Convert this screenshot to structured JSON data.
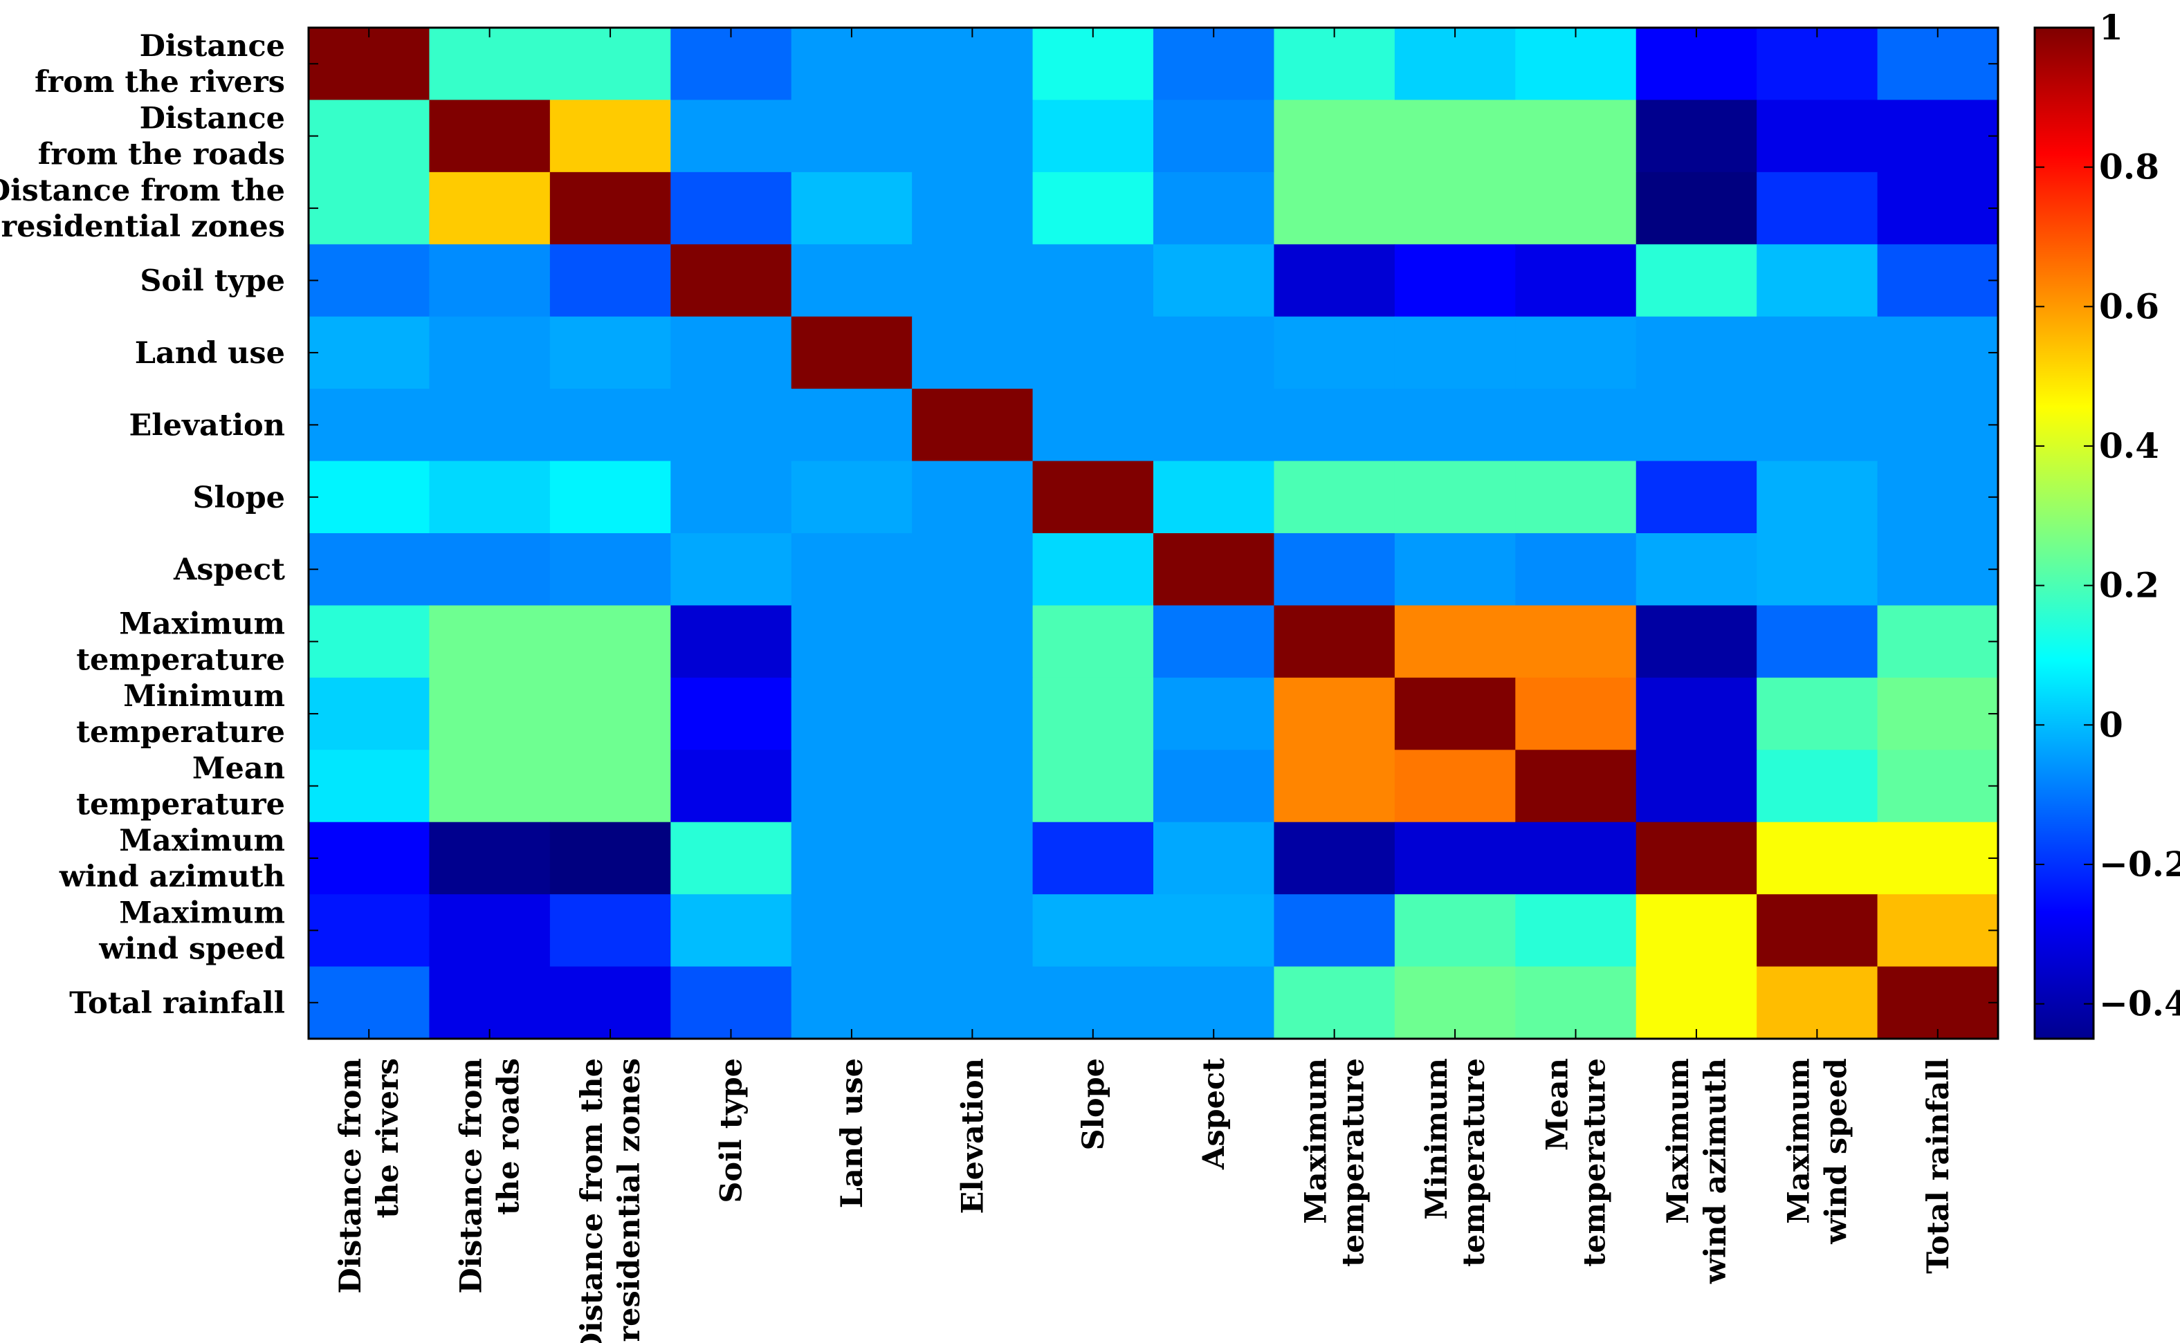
{
  "chart_data": {
    "type": "heatmap",
    "title": "",
    "row_labels": [
      [
        "Distance",
        "from the rivers"
      ],
      [
        "Distance",
        "from the roads"
      ],
      [
        "Distance from the",
        "residential zones"
      ],
      [
        "Soil type"
      ],
      [
        "Land use"
      ],
      [
        "Elevation"
      ],
      [
        "Slope"
      ],
      [
        "Aspect"
      ],
      [
        "Maximum",
        "temperature"
      ],
      [
        "Minimum",
        "temperature"
      ],
      [
        "Mean",
        "temperature"
      ],
      [
        "Maximum",
        "wind azimuth"
      ],
      [
        "Maximum",
        "wind speed"
      ],
      [
        "Total rainfall"
      ]
    ],
    "col_labels": [
      [
        "Distance from",
        "the rivers"
      ],
      [
        "Distance from",
        "the roads"
      ],
      [
        "Distance from the",
        "residential zones"
      ],
      [
        "Soil type"
      ],
      [
        "Land use"
      ],
      [
        "Elevation"
      ],
      [
        "Slope"
      ],
      [
        "Aspect"
      ],
      [
        "Maximum",
        "temperature"
      ],
      [
        "Minimum",
        "temperature"
      ],
      [
        "Mean",
        "temperature"
      ],
      [
        "Maximum",
        "wind azimuth"
      ],
      [
        "Maximum",
        "wind speed"
      ],
      [
        "Total rainfall"
      ]
    ],
    "values": [
      [
        1.0,
        0.17,
        0.17,
        -0.12,
        -0.05,
        -0.05,
        0.12,
        -0.1,
        0.15,
        0.03,
        0.06,
        -0.27,
        -0.24,
        -0.12
      ],
      [
        0.17,
        1.0,
        0.53,
        -0.05,
        -0.05,
        -0.05,
        0.05,
        -0.08,
        0.25,
        0.25,
        0.25,
        -0.43,
        -0.3,
        -0.3
      ],
      [
        0.17,
        0.53,
        1.0,
        -0.15,
        0.0,
        -0.05,
        0.12,
        -0.06,
        0.25,
        0.25,
        0.25,
        -0.45,
        -0.2,
        -0.3
      ],
      [
        -0.1,
        -0.07,
        -0.15,
        1.0,
        -0.05,
        -0.05,
        -0.05,
        -0.02,
        -0.33,
        -0.27,
        -0.3,
        0.15,
        0.0,
        -0.15
      ],
      [
        -0.02,
        -0.05,
        -0.03,
        -0.05,
        1.0,
        -0.05,
        -0.05,
        -0.05,
        -0.04,
        -0.04,
        -0.04,
        -0.05,
        -0.05,
        -0.05
      ],
      [
        -0.05,
        -0.05,
        -0.05,
        -0.05,
        -0.05,
        1.0,
        -0.05,
        -0.05,
        -0.05,
        -0.05,
        -0.05,
        -0.05,
        -0.05,
        -0.05
      ],
      [
        0.08,
        0.04,
        0.08,
        -0.05,
        -0.03,
        -0.05,
        1.0,
        0.04,
        0.2,
        0.2,
        0.2,
        -0.2,
        -0.02,
        -0.05
      ],
      [
        -0.08,
        -0.08,
        -0.07,
        -0.03,
        -0.05,
        -0.05,
        0.04,
        1.0,
        -0.1,
        -0.05,
        -0.07,
        -0.03,
        -0.02,
        -0.05
      ],
      [
        0.15,
        0.25,
        0.25,
        -0.33,
        -0.05,
        -0.05,
        0.2,
        -0.1,
        1.0,
        0.63,
        0.63,
        -0.4,
        -0.12,
        0.2
      ],
      [
        0.03,
        0.25,
        0.25,
        -0.27,
        -0.05,
        -0.05,
        0.2,
        -0.05,
        0.63,
        1.0,
        0.65,
        -0.33,
        0.2,
        0.25
      ],
      [
        0.06,
        0.25,
        0.25,
        -0.3,
        -0.05,
        -0.05,
        0.2,
        -0.07,
        0.63,
        0.65,
        1.0,
        -0.33,
        0.15,
        0.23
      ],
      [
        -0.27,
        -0.43,
        -0.45,
        0.15,
        -0.05,
        -0.05,
        -0.2,
        -0.03,
        -0.4,
        -0.33,
        -0.33,
        1.0,
        0.45,
        0.45
      ],
      [
        -0.24,
        -0.3,
        -0.2,
        0.0,
        -0.05,
        -0.05,
        -0.02,
        -0.02,
        -0.12,
        0.2,
        0.15,
        0.45,
        1.0,
        0.55
      ],
      [
        -0.12,
        -0.3,
        -0.3,
        -0.15,
        -0.05,
        -0.05,
        -0.05,
        -0.05,
        0.2,
        0.25,
        0.23,
        0.45,
        0.55,
        1.0
      ]
    ],
    "colorbar": {
      "colormap": "jet",
      "range": [
        -0.45,
        1.0
      ],
      "ticks": [
        1,
        0.8,
        0.6,
        0.4,
        0.2,
        0,
        -0.2,
        -0.4
      ],
      "tick_labels": [
        "1",
        "0.8",
        "0.6",
        "0.4",
        "0.2",
        "0",
        "−0.2",
        "−0.4"
      ],
      "placement": "right"
    }
  }
}
